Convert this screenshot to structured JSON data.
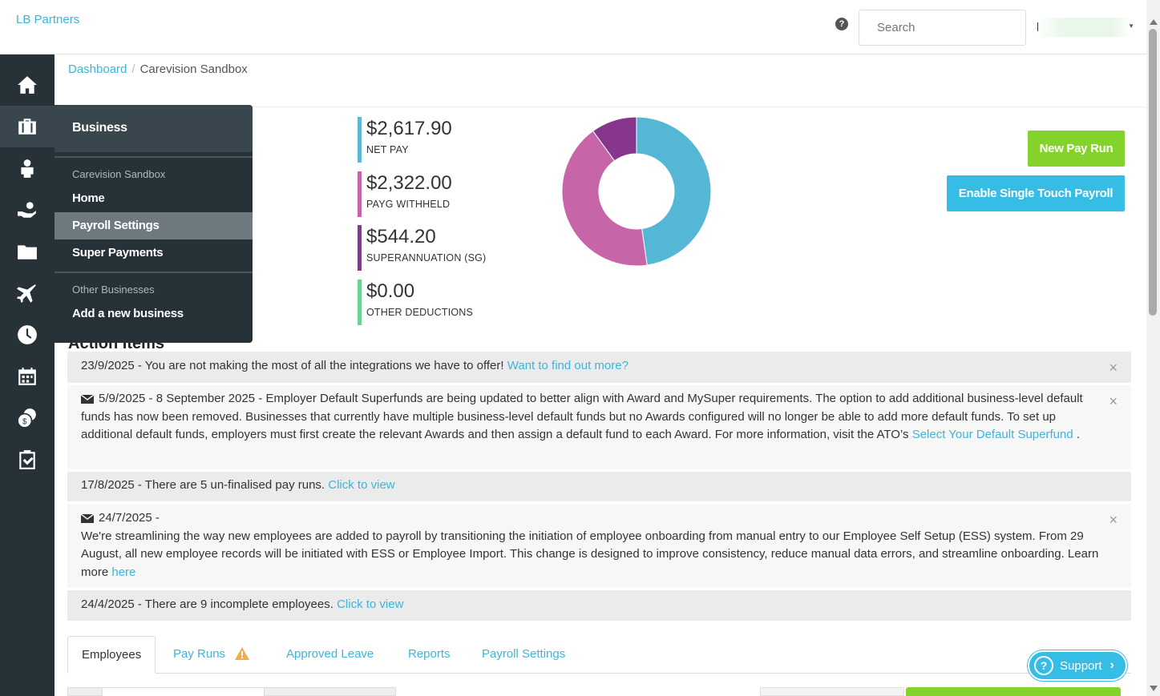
{
  "brand": "LB Partners",
  "search": {
    "placeholder": "Search"
  },
  "breadcrumb": {
    "root": "Dashboard",
    "current": "Carevision Sandbox"
  },
  "flyout": {
    "title": "Business",
    "section1": "Carevision Sandbox",
    "items": [
      "Home",
      "Payroll Settings",
      "Super Payments"
    ],
    "section2": "Other Businesses",
    "add_business": "Add a new business"
  },
  "stats": [
    {
      "value": "$2,617.90",
      "label": "NET PAY",
      "color": "#5cb8d4"
    },
    {
      "value": "$2,322.00",
      "label": "PAYG WITHHELD",
      "color": "#c865a8"
    },
    {
      "value": "$544.20",
      "label": "SUPERANNUATION (SG)",
      "color": "#7b3f85"
    },
    {
      "value": "$0.00",
      "label": "OTHER DEDUCTIONS",
      "color": "#6fcf97"
    }
  ],
  "chart_data": {
    "type": "pie",
    "donut": true,
    "categories": [
      "NET PAY",
      "PAYG WITHHELD",
      "SUPERANNUATION (SG)",
      "OTHER DEDUCTIONS"
    ],
    "values": [
      2617.9,
      2322.0,
      544.2,
      0.0
    ],
    "colors": [
      "#55b7d6",
      "#c765a9",
      "#86368c",
      "#6fcf97"
    ]
  },
  "buttons": {
    "new_pay_run": "New Pay Run",
    "stp": "Enable Single Touch Payroll"
  },
  "action_items_title": "Action Items",
  "alerts": {
    "a1": {
      "text": "23/9/2025 - You are not making the most of all the integrations we have to offer!",
      "link": "Want to find out more?"
    },
    "a2": {
      "text": "5/9/2025 - 8 September 2025 - Employer Default Superfunds are being updated to better align with Award and MySuper requirements. The option to add additional business-level default funds has now been removed. Businesses that currently have multiple business-level default funds but no Awards configured will no longer be able to add more default funds. To set up additional default funds, employers must first create the relevant Awards and then assign a default fund to each Award. For more information, visit the ATO’s",
      "link": "Select Your Default Superfund",
      "tail": " ."
    },
    "a3": {
      "text": "17/8/2025 - There are 5 un-finalised pay runs.",
      "link": "Click to view"
    },
    "a4": {
      "date": "24/7/2025 -",
      "text": "We're streamlining the way new employees are added to payroll by transitioning the initiation of employee onboarding from manual entry to our Employee Self Setup (ESS) system. From 29 August, all new employee records will be initiated with ESS or Employee Import. This change is designed to improve consistency, reduce manual data errors, and streamline onboarding. Learn more",
      "link": "here"
    },
    "a5": {
      "text": "24/4/2025 - There are 9 incomplete employees.",
      "link": "Click to view"
    },
    "close": "×"
  },
  "tabs": [
    "Employees",
    "Pay Runs",
    "Approved Leave",
    "Reports",
    "Payroll Settings"
  ],
  "support": {
    "q": "?",
    "label": "Support",
    "chevron": "›"
  }
}
